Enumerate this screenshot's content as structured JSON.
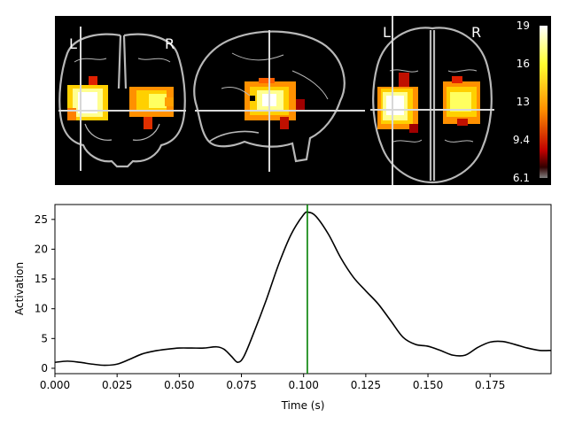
{
  "colors": {
    "background": "#000000",
    "outline": "#b8b8b8",
    "trace": "#000000",
    "cursor": "#008000"
  },
  "glass_brain": {
    "views": [
      "coronal",
      "sagittal",
      "axial"
    ],
    "labels": {
      "coronal_left": "L",
      "coronal_right": "R",
      "axial_left": "L",
      "axial_right": "R"
    },
    "colormap": "hot",
    "colorbar": {
      "min": 6.1,
      "max": 19,
      "tick_labels": [
        "19",
        "16",
        "13",
        "9.4",
        "6.1"
      ]
    }
  },
  "chart_data": {
    "type": "line",
    "xlabel": "Time (s)",
    "ylabel": "Activation",
    "xlim": [
      0,
      0.1995
    ],
    "ylim": [
      -0.9,
      27.5
    ],
    "x_tick_values": [
      0.0,
      0.025,
      0.05,
      0.075,
      0.1,
      0.125,
      0.15,
      0.175
    ],
    "x_tick_labels": [
      "0.000",
      "0.025",
      "0.050",
      "0.075",
      "0.100",
      "0.125",
      "0.150",
      "0.175"
    ],
    "y_tick_values": [
      0,
      5,
      10,
      15,
      20,
      25
    ],
    "y_tick_labels": [
      "0",
      "5",
      "10",
      "15",
      "20",
      "25"
    ],
    "cursor_x": 0.1015,
    "series": [
      {
        "x": [
          0.0,
          0.005,
          0.01,
          0.015,
          0.02,
          0.025,
          0.03,
          0.035,
          0.04,
          0.045,
          0.05,
          0.055,
          0.06,
          0.065,
          0.068,
          0.071,
          0.0735,
          0.076,
          0.08,
          0.085,
          0.09,
          0.095,
          0.1,
          0.102,
          0.105,
          0.11,
          0.115,
          0.12,
          0.125,
          0.13,
          0.135,
          0.14,
          0.145,
          0.15,
          0.155,
          0.16,
          0.165,
          0.17,
          0.175,
          0.18,
          0.185,
          0.19,
          0.195,
          0.1995
        ],
        "values": [
          1.0,
          1.2,
          1.0,
          0.7,
          0.5,
          0.7,
          1.5,
          2.4,
          2.9,
          3.2,
          3.4,
          3.4,
          3.4,
          3.6,
          3.2,
          2.0,
          1.0,
          2.0,
          6.0,
          11.5,
          17.5,
          22.5,
          25.8,
          26.2,
          25.5,
          22.5,
          18.5,
          15.3,
          13.0,
          10.8,
          8.0,
          5.2,
          4.0,
          3.7,
          3.0,
          2.2,
          2.2,
          3.5,
          4.4,
          4.5,
          4.0,
          3.4,
          3.0,
          3.0
        ]
      }
    ]
  }
}
